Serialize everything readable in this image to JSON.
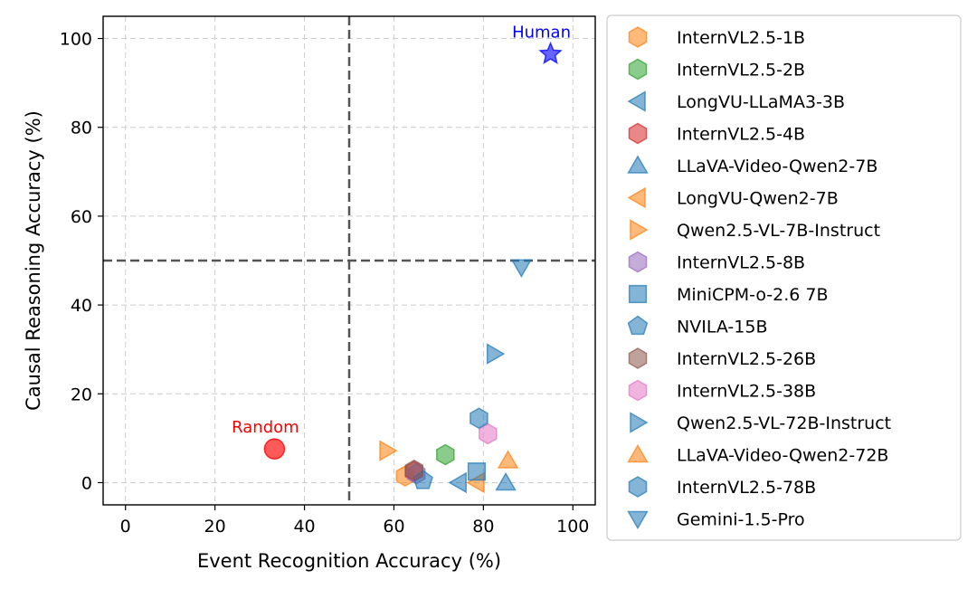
{
  "chart_data": {
    "type": "scatter",
    "title": "",
    "xlabel": "Event Recognition Accuracy (%)",
    "ylabel": "Causal Reasoning Accuracy (%)",
    "xlim": [
      -5,
      105
    ],
    "ylim": [
      -5,
      105
    ],
    "xticks": [
      0,
      20,
      40,
      60,
      80,
      100
    ],
    "yticks": [
      0,
      20,
      40,
      60,
      80,
      100
    ],
    "grid": true,
    "reference_lines": {
      "x": 50,
      "y": 50
    },
    "legend_position": "outside-right",
    "series": [
      {
        "name": "InternVL2.5-1B",
        "marker": "hexagon",
        "color": "#ff7f0e",
        "x": 62.5,
        "y": 1.5
      },
      {
        "name": "InternVL2.5-2B",
        "marker": "hexagon",
        "color": "#2ca02c",
        "x": 71.5,
        "y": 6.3
      },
      {
        "name": "LongVU-LLaMA3-3B",
        "marker": "triangle-left",
        "color": "#1f77b4",
        "x": 74.5,
        "y": 0.0
      },
      {
        "name": "InternVL2.5-4B",
        "marker": "hexagon",
        "color": "#d62728",
        "x": 64.5,
        "y": 2.5
      },
      {
        "name": "LLaVA-Video-Qwen2-7B",
        "marker": "triangle-up",
        "color": "#1f77b4",
        "x": 85.0,
        "y": 0.0
      },
      {
        "name": "LongVU-Qwen2-7B",
        "marker": "triangle-left",
        "color": "#ff7f0e",
        "x": 78.5,
        "y": 0.0
      },
      {
        "name": "Qwen2.5-VL-7B-Instruct",
        "marker": "triangle-right",
        "color": "#ff7f0e",
        "x": 58.5,
        "y": 7.2
      },
      {
        "name": "InternVL2.5-8B",
        "marker": "hexagon",
        "color": "#9467bd",
        "x": 65.0,
        "y": 2.0
      },
      {
        "name": "MiniCPM-o-2.6 7B",
        "marker": "square",
        "color": "#1f77b4",
        "x": 78.5,
        "y": 2.5
      },
      {
        "name": "NVILA-15B",
        "marker": "pentagon",
        "color": "#1f77b4",
        "x": 66.5,
        "y": 0.5
      },
      {
        "name": "InternVL2.5-26B",
        "marker": "hexagon",
        "color": "#8c564b",
        "x": 64.5,
        "y": 2.8
      },
      {
        "name": "InternVL2.5-38B",
        "marker": "hexagon",
        "color": "#e377c2",
        "x": 81.0,
        "y": 11.0
      },
      {
        "name": "Qwen2.5-VL-72B-Instruct",
        "marker": "triangle-right",
        "color": "#1f77b4",
        "x": 82.5,
        "y": 29.0
      },
      {
        "name": "LLaVA-Video-Qwen2-72B",
        "marker": "triangle-up",
        "color": "#ff7f0e",
        "x": 85.5,
        "y": 5.0
      },
      {
        "name": "InternVL2.5-78B",
        "marker": "hexagon",
        "color": "#1f77b4",
        "x": 79.0,
        "y": 14.5
      },
      {
        "name": "Gemini-1.5-Pro",
        "marker": "triangle-down",
        "color": "#1f77b4",
        "x": 88.5,
        "y": 48.5
      }
    ],
    "annotations": [
      {
        "label": "Random",
        "x": 33.3,
        "y": 7.6,
        "marker": "circle",
        "color": "#ff0000"
      },
      {
        "label": "Human",
        "x": 95.0,
        "y": 96.5,
        "marker": "star",
        "color": "#0000ff"
      }
    ]
  }
}
